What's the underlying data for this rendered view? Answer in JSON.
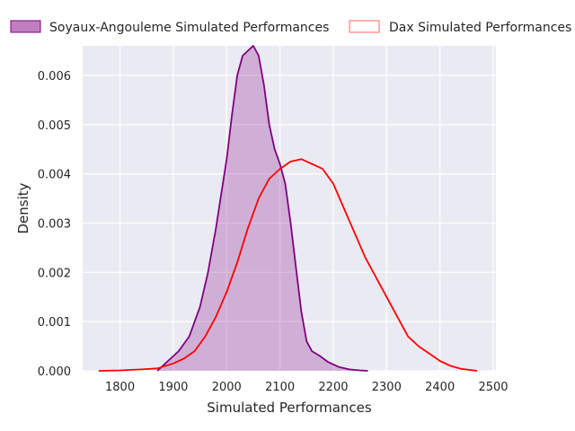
{
  "chart_data": {
    "type": "area",
    "title": "",
    "xlabel": "Simulated Performances",
    "ylabel": "Density",
    "xlim": [
      1730,
      2505
    ],
    "ylim": [
      0,
      0.0066
    ],
    "xticks": [
      1800,
      1900,
      2000,
      2100,
      2200,
      2300,
      2400,
      2500
    ],
    "yticks": [
      0.0,
      0.001,
      0.002,
      0.003,
      0.004,
      0.005,
      0.006
    ],
    "ytick_labels": [
      "0.000",
      "0.001",
      "0.002",
      "0.003",
      "0.004",
      "0.005",
      "0.006"
    ],
    "grid": true,
    "legend_position": "top, outside plot",
    "series": [
      {
        "name": "Soyaux-Angouleme Simulated Performances",
        "color": "#800080",
        "fill": true,
        "x": [
          1870,
          1890,
          1910,
          1930,
          1950,
          1965,
          1980,
          1990,
          2000,
          2010,
          2020,
          2030,
          2040,
          2050,
          2060,
          2070,
          2080,
          2090,
          2100,
          2110,
          2120,
          2130,
          2140,
          2150,
          2160,
          2175,
          2190,
          2210,
          2230,
          2250,
          2265
        ],
        "y": [
          0.0,
          0.0002,
          0.0004,
          0.0007,
          0.0013,
          0.002,
          0.0029,
          0.0036,
          0.0043,
          0.0052,
          0.006,
          0.0064,
          0.0065,
          0.0066,
          0.0064,
          0.0058,
          0.005,
          0.0045,
          0.0042,
          0.0038,
          0.003,
          0.0021,
          0.0012,
          0.0006,
          0.0004,
          0.0003,
          0.00018,
          8e-05,
          3e-05,
          1e-05,
          0.0
        ]
      },
      {
        "name": "Dax Simulated Performances",
        "color": "#ff0000",
        "fill": false,
        "x": [
          1760,
          1800,
          1840,
          1870,
          1900,
          1920,
          1940,
          1960,
          1980,
          2000,
          2020,
          2040,
          2060,
          2080,
          2100,
          2120,
          2140,
          2160,
          2180,
          2200,
          2220,
          2240,
          2260,
          2280,
          2300,
          2320,
          2340,
          2360,
          2380,
          2400,
          2420,
          2440,
          2470
        ],
        "y": [
          0.0,
          1e-05,
          3e-05,
          5e-05,
          0.00015,
          0.00025,
          0.0004,
          0.0007,
          0.0011,
          0.0016,
          0.0022,
          0.0029,
          0.0035,
          0.0039,
          0.0041,
          0.00425,
          0.0043,
          0.0042,
          0.0041,
          0.0038,
          0.0033,
          0.0028,
          0.0023,
          0.0019,
          0.0015,
          0.0011,
          0.0007,
          0.0005,
          0.00035,
          0.0002,
          0.0001,
          4e-05,
          0.0
        ]
      }
    ]
  }
}
